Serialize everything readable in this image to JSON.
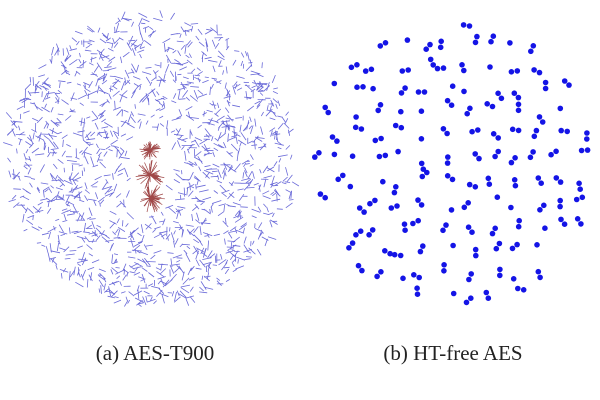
{
  "figure": {
    "panels": [
      {
        "caption": "(a) AES-T900"
      },
      {
        "caption": "(b) HT-free AES"
      }
    ]
  }
}
